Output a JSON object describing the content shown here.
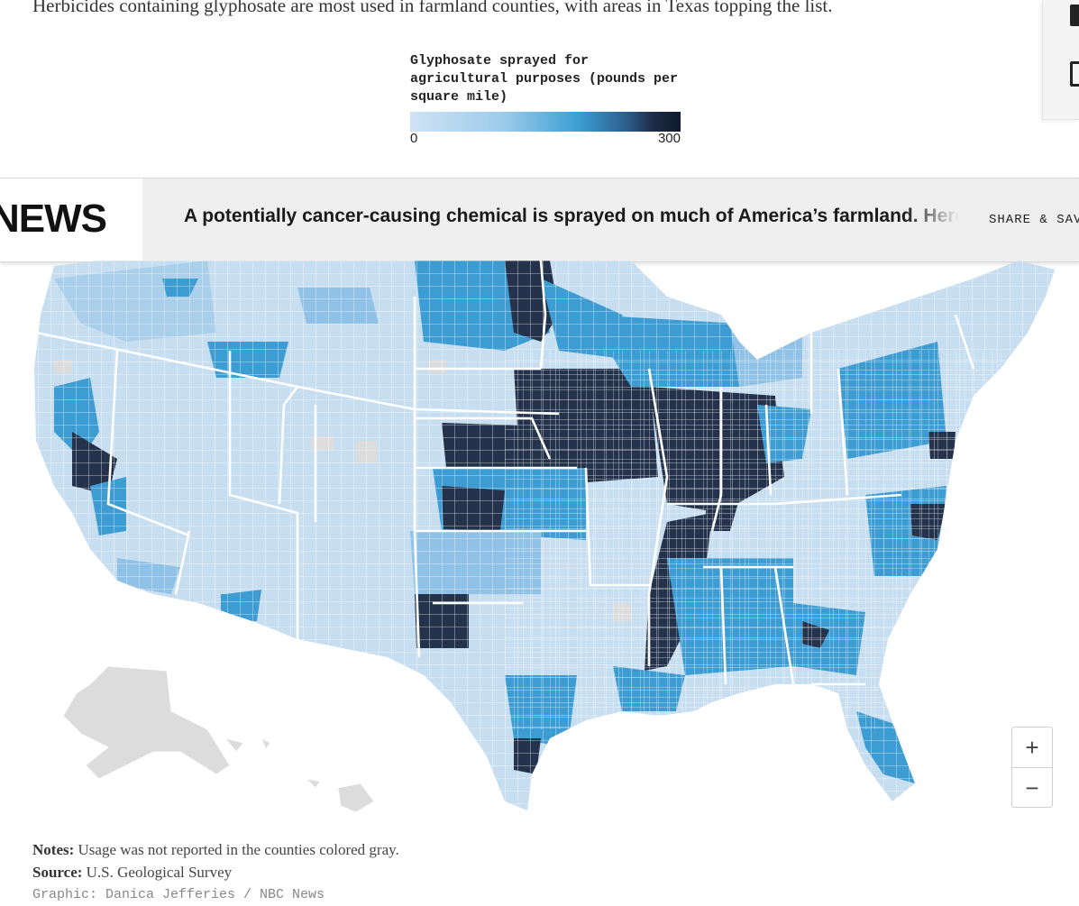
{
  "intro": "Herbicides containing glyphosate are most used in farmland counties, with areas in Texas topping the list.",
  "legend": {
    "title": "Glyphosate sprayed for agricultural purposes (pounds per square mile)",
    "min_label": "0",
    "max_label": "300",
    "colors": [
      "#cfe3f4",
      "#9ccbea",
      "#3c9fd4",
      "#2b5e8c",
      "#1d2b45",
      "#101a2e"
    ]
  },
  "navbar": {
    "logo": "NEWS",
    "headline": "A potentially cancer-causing chemical is sprayed on much of America’s farmland. Here is where",
    "share": "SHARE & SAVE"
  },
  "map": {
    "colors": {
      "light": "#c6def0",
      "mid": "#8fc2e6",
      "blue": "#3d9dd3",
      "dark": "#25324c",
      "gray": "#dcdcdc",
      "state_border": "#ffffff"
    },
    "zoom_in": "+",
    "zoom_out": "−"
  },
  "footer": {
    "notes_label": "Notes:",
    "notes": "Usage was not reported in the counties colored gray.",
    "source_label": "Source:",
    "source": "U.S. Geological Survey",
    "credit": "Graphic: Danica Jefferies / NBC News"
  }
}
